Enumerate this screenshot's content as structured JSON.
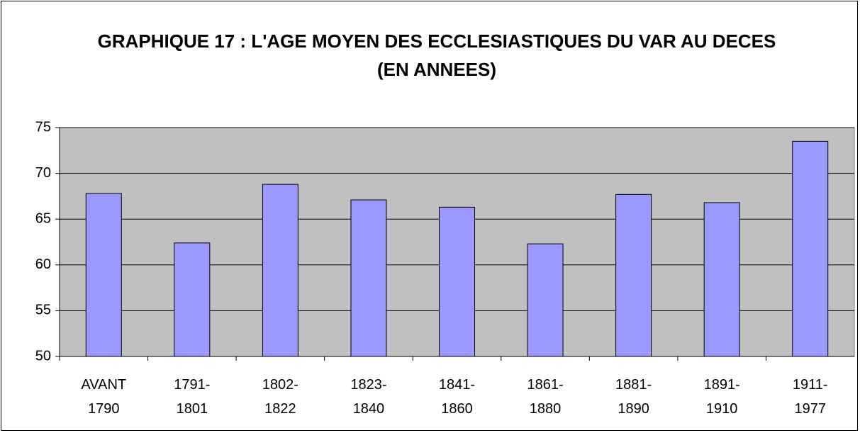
{
  "chart_data": {
    "type": "bar",
    "title": "GRAPHIQUE 17 : L'AGE MOYEN DES ECCLESIASTIQUES DU VAR AU DECES (EN ANNEES)",
    "categories": [
      "AVANT\n1790",
      "1791-\n1801",
      "1802-\n1822",
      "1823-\n1840",
      "1841-\n1860",
      "1861-\n1880",
      "1881-\n1890",
      "1891-\n1910",
      "1911-\n1977"
    ],
    "values": [
      67.8,
      62.4,
      68.8,
      67.1,
      66.3,
      62.3,
      67.7,
      66.8,
      73.5
    ],
    "color": "#9999ff",
    "ylim": [
      50,
      75
    ],
    "yticks": [
      50,
      55,
      60,
      65,
      70,
      75
    ],
    "grid": true
  }
}
